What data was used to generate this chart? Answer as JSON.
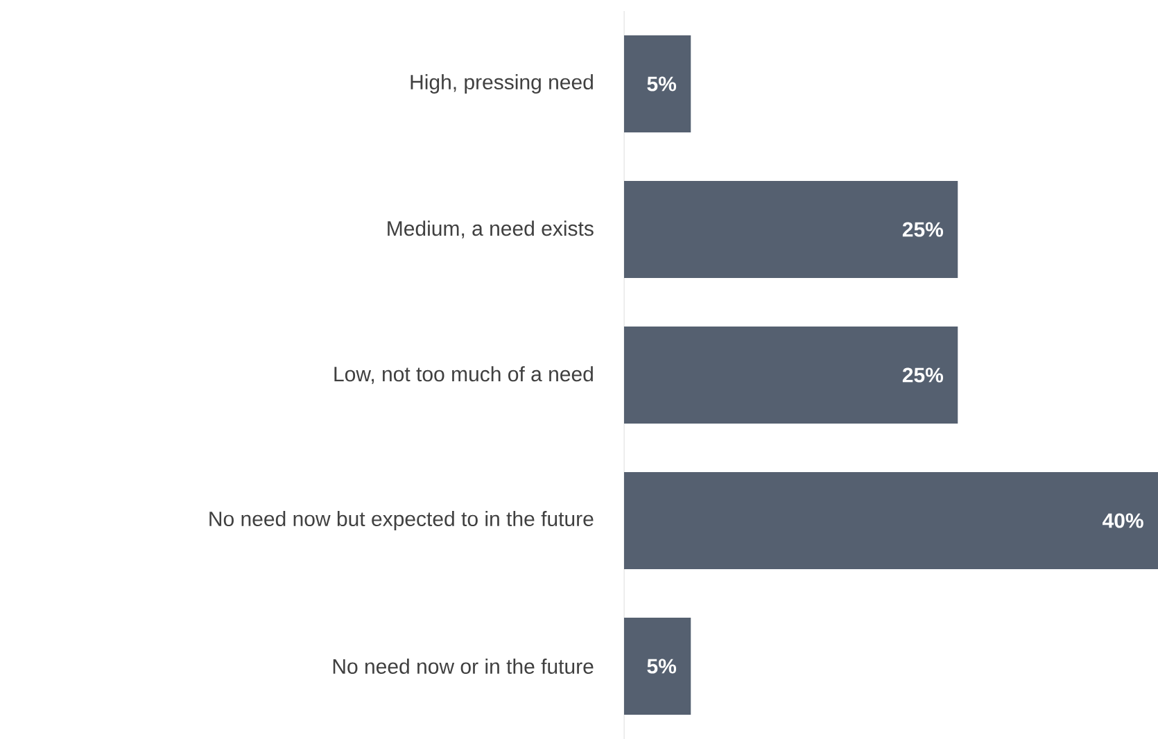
{
  "chart_data": {
    "type": "bar",
    "orientation": "horizontal",
    "categories": [
      "High, pressing need",
      "Medium, a need exists",
      "Low, not too much of a need",
      "No need now but expected to in the future",
      "No need now or in the future"
    ],
    "values": [
      5,
      25,
      25,
      40,
      5
    ],
    "value_labels": [
      "5%",
      "25%",
      "25%",
      "40%",
      "5%"
    ],
    "color": "#556070"
  }
}
